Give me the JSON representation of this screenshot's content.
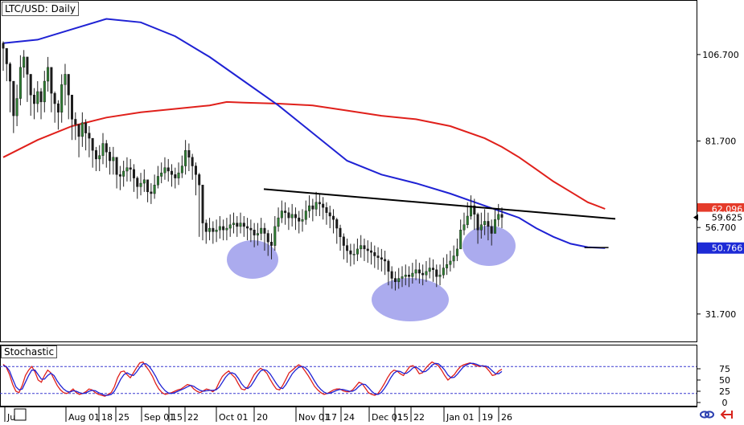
{
  "chart_title": "LTC/USD: Daily",
  "indicator_label": "Stochastic",
  "colors": {
    "background": "#ffffff",
    "candle_bull": "#2e7d32",
    "candle_bear": "#1b1b1b",
    "ma_fast": "#1f22d4",
    "ma_slow": "#e0201b",
    "trendline": "#000000",
    "highlight_fill": "#8f8fe8",
    "stoch_k": "#e0201b",
    "stoch_d": "#1f22d4",
    "stoch_level": "#3a3ad0",
    "badge_red": "#e53b2a",
    "badge_blue": "#1d2bd6"
  },
  "price_axis": {
    "ticks": [
      "106.700",
      "81.700",
      "56.700",
      "31.700"
    ],
    "ylim": [
      24.0,
      122.0
    ],
    "badges": [
      {
        "value": 62.096,
        "label": "62.096",
        "style": "red"
      },
      {
        "value": 59.625,
        "label": "59.625",
        "style": "plain"
      },
      {
        "value": 50.766,
        "label": "50.766",
        "style": "blue"
      }
    ]
  },
  "stoch_axis": {
    "ticks": [
      "75",
      "50",
      "25",
      "0"
    ],
    "ylim": [
      0,
      100
    ],
    "levels": [
      80,
      20
    ]
  },
  "x_axis": {
    "labels": [
      "Jul",
      "Aug 01",
      "18",
      "25",
      "Sep 01",
      "15",
      "22",
      "Oct 01",
      "20",
      "Nov 01",
      "17",
      "24",
      "Dec 01",
      "15",
      "22",
      "Jan 01",
      "19",
      "26"
    ]
  },
  "icons": [
    "link-icon",
    "arrow-icon"
  ],
  "chart_data": [
    {
      "type": "candlestick",
      "title": "LTC/USD: Daily",
      "ylim": [
        24.0,
        122.0
      ],
      "series": [
        {
          "name": "price",
          "kind": "candles",
          "close": [
            108.5,
            104.0,
            99.0,
            89.0,
            94.0,
            103.0,
            106.0,
            101.0,
            95.0,
            92.5,
            96.0,
            93.0,
            99.0,
            103.0,
            95.5,
            92.5,
            90.0,
            98.0,
            101.0,
            95.0,
            88.0,
            86.5,
            83.0,
            87.0,
            84.0,
            82.5,
            79.0,
            76.5,
            77.5,
            81.0,
            78.5,
            76.0,
            77.0,
            72.0,
            71.5,
            73.0,
            74.0,
            73.5,
            71.0,
            68.5,
            69.5,
            70.5,
            67.0,
            66.5,
            69.0,
            71.5,
            72.5,
            74.0,
            73.0,
            72.0,
            71.0,
            72.5,
            74.5,
            79.0,
            77.0,
            74.5,
            72.0,
            69.0,
            58.0,
            55.5,
            56.5,
            55.5,
            56.0,
            57.0,
            56.0,
            56.5,
            57.5,
            58.0,
            57.0,
            58.0,
            57.0,
            56.5,
            56.0,
            54.5,
            55.0,
            56.5,
            55.0,
            52.5,
            51.5,
            57.0,
            59.5,
            61.5,
            61.0,
            59.5,
            60.5,
            59.5,
            58.5,
            59.0,
            61.5,
            63.0,
            62.0,
            64.0,
            63.5,
            62.5,
            61.0,
            60.0,
            59.0,
            56.5,
            54.0,
            51.5,
            50.0,
            49.0,
            49.0,
            50.5,
            51.5,
            50.5,
            50.0,
            49.5,
            48.5,
            48.0,
            47.5,
            47.0,
            44.0,
            42.0,
            41.0,
            42.0,
            42.5,
            43.0,
            42.5,
            43.5,
            44.5,
            43.5,
            43.0,
            44.0,
            45.0,
            44.5,
            42.5,
            43.0,
            45.0,
            46.0,
            47.0,
            48.5,
            50.5,
            56.0,
            57.5,
            60.0,
            63.0,
            60.5,
            56.0,
            57.5,
            58.5,
            57.0,
            55.0,
            59.0,
            60.5,
            59.625
          ],
          "high": [
            110.5,
            106.0,
            104.5,
            95.0,
            98.0,
            106.5,
            108.0,
            104.5,
            100.0,
            97.0,
            99.0,
            97.0,
            102.0,
            106.0,
            101.0,
            96.0,
            93.5,
            101.0,
            104.0,
            99.0,
            94.0,
            90.0,
            86.5,
            90.0,
            88.0,
            86.0,
            82.0,
            80.0,
            80.5,
            84.0,
            82.0,
            80.0,
            80.0,
            76.0,
            74.5,
            76.0,
            77.0,
            76.5,
            75.0,
            71.5,
            72.5,
            73.5,
            70.5,
            69.5,
            72.0,
            74.5,
            75.5,
            77.0,
            76.5,
            75.0,
            74.0,
            75.5,
            77.5,
            82.0,
            81.0,
            78.0,
            75.5,
            72.5,
            62.0,
            59.0,
            59.5,
            58.5,
            59.0,
            60.0,
            59.0,
            59.5,
            60.5,
            61.0,
            60.0,
            61.0,
            60.0,
            59.5,
            59.0,
            58.0,
            58.0,
            59.5,
            58.0,
            56.0,
            55.0,
            60.0,
            62.5,
            64.5,
            64.0,
            62.5,
            63.5,
            62.5,
            61.5,
            62.0,
            64.5,
            66.0,
            65.0,
            67.0,
            66.5,
            65.5,
            64.0,
            63.0,
            62.0,
            59.5,
            57.5,
            55.0,
            53.5,
            52.0,
            52.0,
            53.5,
            54.5,
            53.5,
            53.0,
            52.5,
            51.5,
            51.0,
            50.5,
            50.0,
            47.5,
            45.5,
            44.0,
            45.0,
            45.5,
            46.0,
            45.5,
            46.5,
            47.5,
            46.5,
            46.0,
            47.0,
            48.0,
            47.5,
            46.0,
            46.0,
            48.0,
            49.0,
            50.0,
            51.5,
            53.5,
            59.0,
            61.0,
            64.0,
            66.0,
            65.0,
            61.0,
            61.0,
            62.0,
            61.0,
            59.0,
            62.0,
            63.5,
            62.5
          ],
          "low": [
            102.0,
            99.0,
            90.0,
            84.0,
            86.0,
            92.0,
            100.0,
            93.0,
            89.0,
            88.0,
            90.0,
            88.0,
            90.0,
            96.0,
            90.0,
            87.0,
            85.0,
            87.0,
            92.0,
            88.0,
            82.0,
            82.0,
            77.0,
            80.0,
            79.0,
            77.0,
            74.0,
            73.0,
            73.0,
            75.0,
            74.0,
            72.0,
            72.0,
            68.0,
            67.5,
            68.5,
            70.0,
            70.0,
            67.0,
            65.0,
            66.0,
            67.0,
            64.0,
            63.5,
            65.0,
            68.0,
            69.5,
            70.5,
            70.0,
            68.5,
            68.0,
            69.0,
            71.0,
            72.0,
            73.0,
            70.5,
            66.0,
            54.0,
            53.0,
            52.0,
            53.0,
            52.0,
            52.5,
            53.5,
            53.0,
            53.0,
            54.0,
            55.0,
            54.0,
            55.0,
            54.0,
            53.0,
            52.5,
            51.0,
            51.5,
            53.0,
            50.0,
            48.5,
            47.5,
            50.0,
            55.5,
            58.0,
            57.5,
            56.0,
            57.0,
            56.0,
            55.0,
            55.5,
            57.5,
            59.5,
            58.5,
            60.0,
            60.0,
            59.0,
            57.5,
            56.5,
            55.0,
            52.0,
            50.0,
            47.5,
            46.5,
            45.5,
            46.0,
            47.0,
            48.0,
            47.0,
            46.5,
            46.0,
            45.0,
            44.5,
            44.0,
            43.0,
            40.0,
            39.0,
            38.5,
            39.0,
            39.5,
            40.0,
            39.5,
            40.5,
            41.5,
            40.5,
            40.0,
            41.0,
            42.0,
            41.0,
            39.5,
            40.0,
            42.0,
            43.0,
            44.0,
            45.0,
            47.0,
            52.0,
            54.5,
            56.5,
            59.0,
            56.0,
            52.0,
            53.5,
            54.5,
            53.0,
            51.5,
            55.0,
            57.0,
            56.5
          ]
        },
        {
          "name": "MA fast",
          "kind": "line",
          "color": "#1f22d4",
          "x": [
            0,
            10,
            20,
            30,
            40,
            50,
            60,
            70,
            80,
            90,
            100,
            110,
            120,
            130,
            140,
            150,
            155,
            160,
            165,
            170,
            175
          ],
          "y": [
            110,
            111,
            114,
            117,
            116,
            112,
            106,
            99.0,
            92.0,
            84.0,
            76.0,
            72.0,
            69.5,
            66.5,
            63.0,
            59.5,
            56.5,
            54.0,
            52.0,
            51.0,
            50.766
          ]
        },
        {
          "name": "MA slow",
          "kind": "line",
          "color": "#e0201b",
          "x": [
            0,
            10,
            20,
            30,
            40,
            50,
            60,
            65,
            70,
            80,
            90,
            100,
            110,
            120,
            130,
            140,
            145,
            150,
            155,
            160,
            165,
            170,
            175
          ],
          "y": [
            77.0,
            82.0,
            86.0,
            88.5,
            90.0,
            91.0,
            92.0,
            93.0,
            92.8,
            92.5,
            92.0,
            90.5,
            89.0,
            88.0,
            86.0,
            82.5,
            80.0,
            77.0,
            73.5,
            70.0,
            67.0,
            64.0,
            62.096
          ]
        },
        {
          "name": "trendline",
          "kind": "line",
          "color": "#000000",
          "x": [
            93,
            217
          ],
          "y": [
            67.8,
            59.2
          ]
        }
      ]
    },
    {
      "type": "line",
      "title": "Stochastic",
      "ylim": [
        0,
        100
      ],
      "levels": [
        80,
        20
      ],
      "series": [
        {
          "name": "%K",
          "color": "#e0201b",
          "values": [
            85,
            78,
            62,
            40,
            25,
            22,
            38,
            60,
            72,
            80,
            68,
            50,
            45,
            60,
            72,
            66,
            52,
            38,
            28,
            22,
            20,
            24,
            30,
            22,
            18,
            20,
            24,
            30,
            28,
            22,
            18,
            16,
            14,
            18,
            22,
            35,
            55,
            68,
            70,
            62,
            55,
            66,
            78,
            88,
            90,
            80,
            70,
            58,
            42,
            30,
            22,
            18,
            20,
            22,
            25,
            28,
            30,
            35,
            40,
            38,
            30,
            25,
            22,
            26,
            30,
            28,
            24,
            30,
            45,
            58,
            65,
            70,
            62,
            55,
            42,
            30,
            28,
            35,
            48,
            62,
            70,
            76,
            72,
            65,
            52,
            40,
            30,
            28,
            38,
            52,
            66,
            72,
            78,
            84,
            80,
            70,
            60,
            48,
            36,
            28,
            22,
            18,
            20,
            24,
            28,
            30,
            30,
            26,
            24,
            24,
            28,
            36,
            45,
            42,
            32,
            22,
            18,
            16,
            20,
            30,
            42,
            55,
            66,
            72,
            70,
            64,
            60,
            70,
            80,
            82,
            75,
            64,
            66,
            76,
            84,
            90,
            86,
            82,
            72,
            60,
            50,
            56,
            62,
            72,
            80,
            84,
            86,
            88,
            85,
            82,
            80,
            82,
            78,
            70,
            60,
            62,
            70,
            74
          ]
        },
        {
          "name": "%D",
          "color": "#1f22d4",
          "values": [
            82,
            80,
            70,
            52,
            35,
            28,
            30,
            45,
            60,
            72,
            72,
            62,
            52,
            52,
            60,
            65,
            60,
            48,
            38,
            30,
            25,
            23,
            26,
            25,
            22,
            20,
            21,
            25,
            27,
            26,
            22,
            19,
            16,
            16,
            18,
            25,
            38,
            52,
            62,
            66,
            62,
            60,
            68,
            78,
            86,
            86,
            80,
            70,
            58,
            44,
            34,
            26,
            21,
            20,
            22,
            25,
            28,
            31,
            35,
            38,
            36,
            31,
            27,
            25,
            26,
            27,
            27,
            28,
            34,
            45,
            56,
            64,
            66,
            63,
            54,
            42,
            34,
            31,
            37,
            48,
            60,
            70,
            73,
            71,
            64,
            53,
            42,
            33,
            31,
            40,
            52,
            64,
            72,
            78,
            80,
            78,
            71,
            60,
            48,
            37,
            29,
            23,
            20,
            21,
            24,
            27,
            29,
            29,
            27,
            25,
            25,
            29,
            36,
            41,
            40,
            33,
            25,
            19,
            18,
            22,
            31,
            42,
            55,
            65,
            70,
            69,
            65,
            65,
            70,
            77,
            79,
            74,
            68,
            69,
            75,
            83,
            87,
            86,
            80,
            72,
            61,
            55,
            56,
            63,
            72,
            80,
            84,
            87,
            87,
            85,
            82,
            81,
            81,
            77,
            70,
            64,
            64,
            69
          ]
        }
      ]
    }
  ]
}
